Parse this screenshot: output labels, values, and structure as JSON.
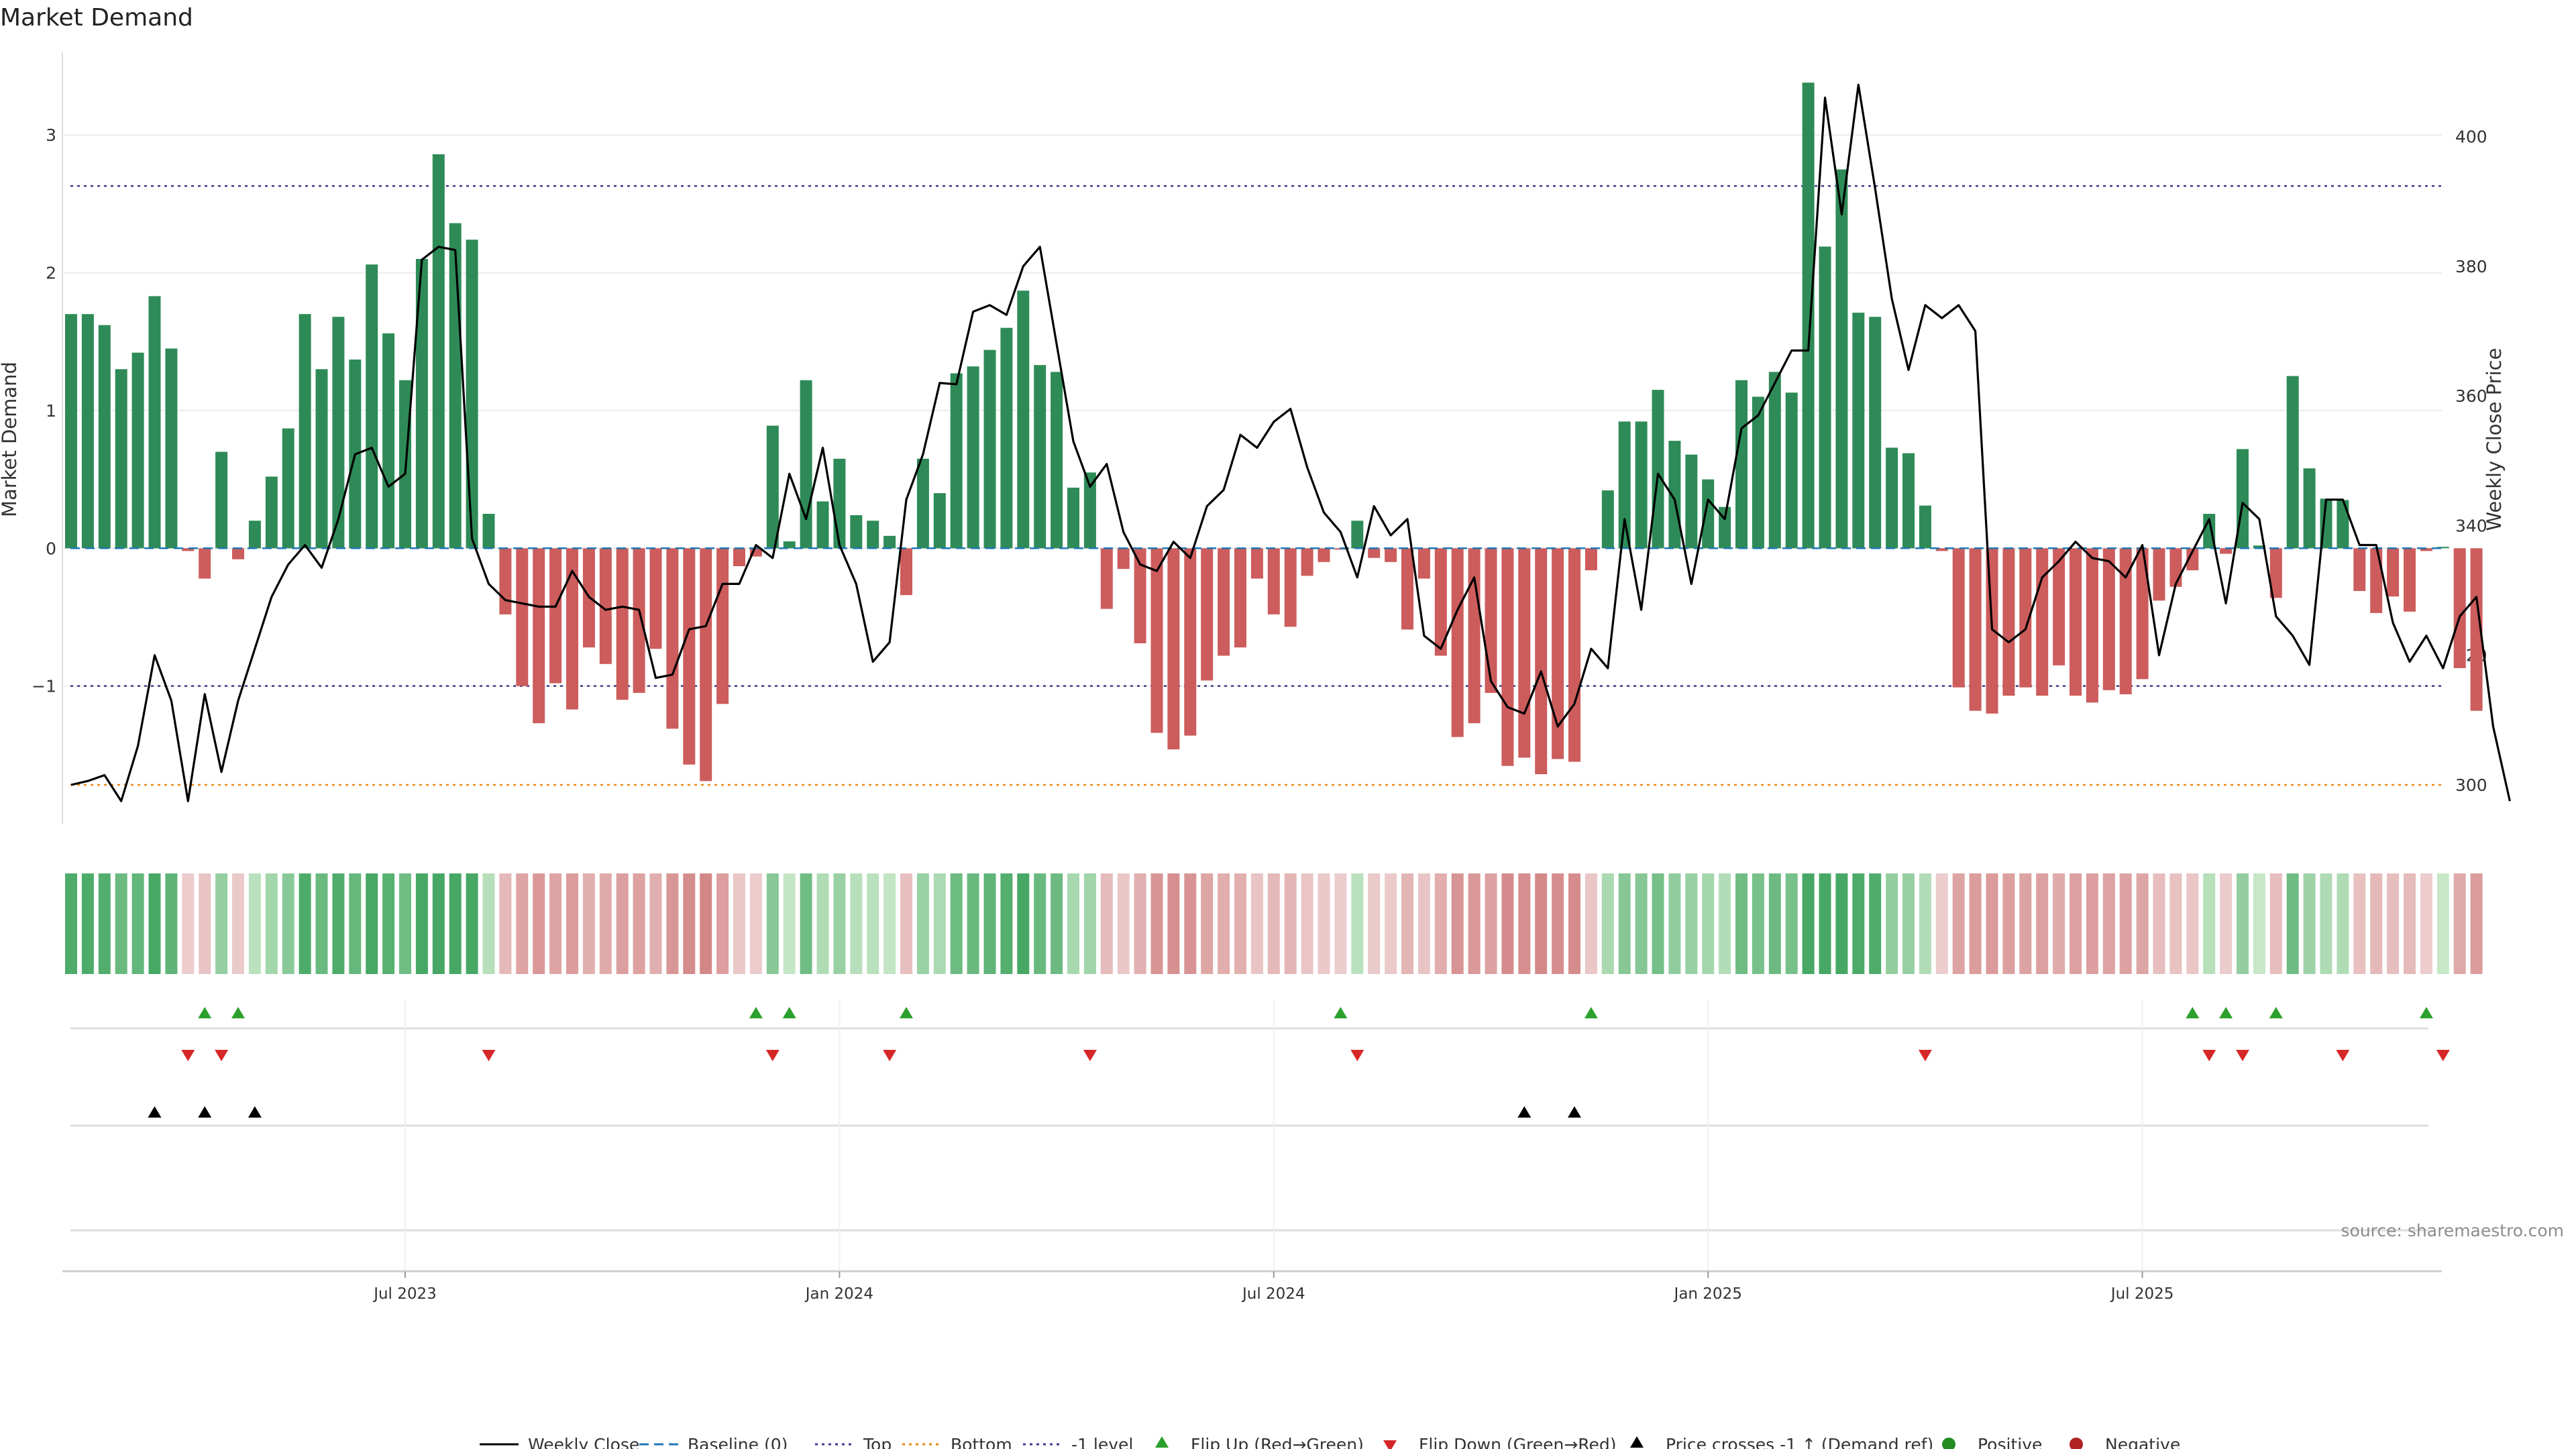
{
  "chart_data": {
    "type": "bar",
    "title": "Market Demand",
    "ylabel": "Market Demand",
    "y2label": "Weekly Close Price",
    "ylim": [
      -2.0,
      3.6
    ],
    "y2lim": [
      294.0,
      413.0
    ],
    "yticks": [
      "3",
      "2",
      "1",
      "0",
      "−1"
    ],
    "y2ticks": [
      "400",
      "380",
      "360",
      "340",
      "320",
      "300"
    ],
    "reference_lines": {
      "top": 2.63,
      "minus_one": -1.0,
      "baseline": 0,
      "bottom_price": 300
    },
    "week_count": 144,
    "x_ticks": [
      {
        "label": "Jul 2023",
        "week": 20
      },
      {
        "label": "Jan 2024",
        "week": 46
      },
      {
        "label": "Jul 2024",
        "week": 72
      },
      {
        "label": "Jan 2025",
        "week": 98
      },
      {
        "label": "Jul 2025",
        "week": 124
      }
    ],
    "series": [
      {
        "name": "Market Demand",
        "type": "bar",
        "values": [
          1.7,
          1.7,
          1.62,
          1.3,
          1.42,
          1.83,
          1.45,
          -0.02,
          -0.22,
          0.7,
          -0.08,
          0.2,
          0.52,
          0.87,
          1.7,
          1.3,
          1.68,
          1.37,
          2.06,
          1.56,
          1.22,
          2.1,
          2.86,
          2.36,
          2.24,
          0.25,
          -0.48,
          -1.0,
          -1.27,
          -0.98,
          -1.17,
          -0.72,
          -0.84,
          -1.1,
          -1.05,
          -0.73,
          -1.31,
          -1.57,
          -1.69,
          -1.13,
          -0.13,
          -0.06,
          0.89,
          0.05,
          1.22,
          0.34,
          0.65,
          0.24,
          0.2,
          0.09,
          -0.34,
          0.65,
          0.4,
          1.27,
          1.32,
          1.44,
          1.6,
          1.87,
          1.33,
          1.28,
          0.44,
          0.55,
          -0.44,
          -0.15,
          -0.69,
          -1.34,
          -1.46,
          -1.36,
          -0.96,
          -0.78,
          -0.72,
          -0.22,
          -0.48,
          -0.57,
          -0.2,
          -0.1,
          -0.01,
          0.2,
          -0.07,
          -0.1,
          -0.59,
          -0.22,
          -0.78,
          -1.37,
          -1.27,
          -1.05,
          -1.58,
          -1.52,
          -1.64,
          -1.53,
          -1.55,
          -0.16,
          0.42,
          0.92,
          0.92,
          1.15,
          0.78,
          0.68,
          0.5,
          0.3,
          1.22,
          1.1,
          1.28,
          1.13,
          3.38,
          2.19,
          2.75,
          1.71,
          1.68,
          0.73,
          0.69,
          0.31,
          -0.02,
          -1.01,
          -1.18,
          -1.2,
          -1.07,
          -1.01,
          -1.07,
          -0.85,
          -1.07,
          -1.12,
          -1.03,
          -1.06,
          -0.95,
          -0.38,
          -0.28,
          -0.16,
          0.25,
          -0.04,
          0.72,
          0.02,
          -0.36,
          1.25,
          0.58,
          0.36,
          0.35,
          -0.31,
          -0.47,
          -0.35,
          -0.46,
          -0.02,
          0.01,
          -0.87,
          -1.18
        ]
      },
      {
        "name": "Weekly Close",
        "type": "line",
        "values": [
          300,
          300.6,
          301.5,
          297.5,
          306,
          320,
          313,
          297.5,
          314,
          302,
          313,
          321,
          329,
          334,
          337,
          333.5,
          341,
          351,
          352,
          346,
          348,
          381,
          383,
          382.5,
          338,
          331,
          328.5,
          328,
          327.5,
          327.5,
          333,
          329,
          327,
          327.5,
          327,
          316.5,
          317,
          324,
          324.5,
          331,
          331,
          337,
          335,
          348,
          341,
          352,
          337,
          331,
          319,
          322,
          344,
          351,
          362,
          361.8,
          373,
          374,
          372.5,
          380,
          383,
          368,
          353,
          346,
          349.5,
          339,
          334,
          333,
          337.5,
          335,
          343,
          345.5,
          354,
          352,
          356,
          358,
          349,
          342,
          339,
          332,
          343,
          338.5,
          341,
          323,
          321,
          327,
          332,
          316,
          312,
          311,
          317.5,
          309,
          312.5,
          321,
          318,
          341,
          327,
          348,
          344,
          331,
          344,
          341,
          355,
          357,
          362,
          367,
          367,
          406,
          388,
          408,
          392,
          375,
          364,
          374,
          372,
          374,
          370,
          324,
          322,
          324,
          332,
          334.5,
          337.5,
          335,
          334.5,
          332,
          337,
          320,
          331,
          336,
          341,
          328,
          343.5,
          341,
          326,
          323,
          318.5,
          344,
          344,
          337,
          337,
          325,
          319,
          323,
          318,
          326,
          329,
          309,
          297.5
        ]
      }
    ],
    "strip": {
      "name": "Demand heat strip",
      "values_ref": "Market Demand"
    },
    "markers": {
      "flip_up_weeks": [
        8,
        10,
        41,
        43,
        50,
        76,
        91,
        127,
        129,
        132,
        141
      ],
      "flip_down_weeks": [
        7,
        9,
        25,
        42,
        49,
        61,
        77,
        111,
        128,
        130,
        136,
        142
      ],
      "price_cross_weeks": [
        5,
        8,
        11,
        87,
        90
      ]
    },
    "legend": [
      {
        "label": "Weekly Close",
        "marker": "line",
        "color": "#000000"
      },
      {
        "label": "Baseline (0)",
        "marker": "dashed",
        "color": "#1f77b4"
      },
      {
        "label": "Top",
        "marker": "dotted",
        "color": "#3b3b8f"
      },
      {
        "label": "Bottom",
        "marker": "dotted",
        "color": "#e8891a"
      },
      {
        "label": "-1 level",
        "marker": "dotted",
        "color": "#3b3b8f"
      },
      {
        "label": "Flip Up (Red→Green)",
        "marker": "tri-up",
        "color": "#2ca02c"
      },
      {
        "label": "Flip Down (Green→Red)",
        "marker": "tri-down",
        "color": "#d62728"
      },
      {
        "label": "Price crosses -1 ↑ (Demand ref)",
        "marker": "tri-up",
        "color": "#000000"
      },
      {
        "label": "Positive",
        "marker": "circle",
        "color": "#228b22"
      },
      {
        "label": "Negative",
        "marker": "circle",
        "color": "#b22222"
      }
    ],
    "source": "source: sharemaestro.com",
    "colors": {
      "positive": "#2e8b57",
      "negative": "#cd5c5c",
      "price": "#000000"
    }
  }
}
